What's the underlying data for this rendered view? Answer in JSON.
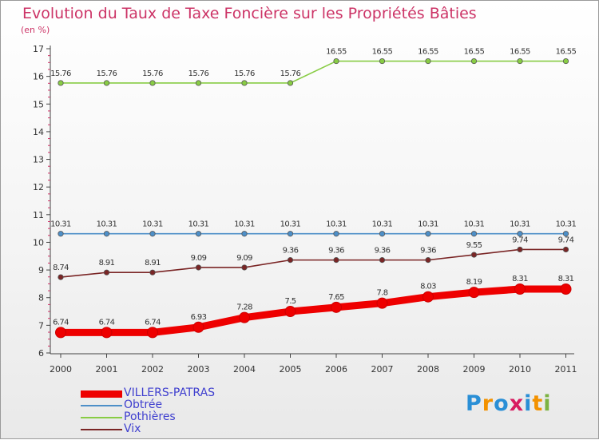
{
  "chart_data": {
    "type": "line",
    "title": "Evolution du Taux de Taxe Foncière sur les Propriétés Bâties",
    "unit_label": "(en %)",
    "xlabel": "",
    "ylabel": "",
    "x": [
      "2000",
      "2001",
      "2002",
      "2003",
      "2004",
      "2005",
      "2006",
      "2007",
      "2008",
      "2009",
      "2010",
      "2011"
    ],
    "ylim": [
      6,
      17
    ],
    "yticks": [
      "6",
      "7",
      "8",
      "9",
      "10",
      "11",
      "12",
      "13",
      "14",
      "15",
      "16",
      "17"
    ],
    "grid": false,
    "legend_position": "bottom-left",
    "series": [
      {
        "name": "VILLERS-PATRAS",
        "color": "#ee0000",
        "values": [
          6.74,
          6.74,
          6.74,
          6.93,
          7.28,
          7.5,
          7.65,
          7.8,
          8.03,
          8.19,
          8.31,
          8.31
        ],
        "labels": [
          "6.74",
          "6.74",
          "6.74",
          "6.93",
          "7.28",
          "7.5",
          "7.65",
          "7.8",
          "8.03",
          "8.19",
          "8.31",
          "8.31"
        ]
      },
      {
        "name": "Obtrée",
        "color": "#4d8fc8",
        "values": [
          10.31,
          10.31,
          10.31,
          10.31,
          10.31,
          10.31,
          10.31,
          10.31,
          10.31,
          10.31,
          10.31,
          10.31
        ],
        "labels": [
          "10.31",
          "10.31",
          "10.31",
          "10.31",
          "10.31",
          "10.31",
          "10.31",
          "10.31",
          "10.31",
          "10.31",
          "10.31",
          "10.31"
        ]
      },
      {
        "name": "Pothières",
        "color": "#88cc44",
        "values": [
          15.76,
          15.76,
          15.76,
          15.76,
          15.76,
          15.76,
          16.55,
          16.55,
          16.55,
          16.55,
          16.55,
          16.55
        ],
        "labels": [
          "15.76",
          "15.76",
          "15.76",
          "15.76",
          "15.76",
          "15.76",
          "16.55",
          "16.55",
          "16.55",
          "16.55",
          "16.55",
          "16.55"
        ]
      },
      {
        "name": "Vix",
        "color": "#7a2525",
        "values": [
          8.74,
          8.91,
          8.91,
          9.09,
          9.09,
          9.36,
          9.36,
          9.36,
          9.36,
          9.55,
          9.74,
          9.74
        ],
        "labels": [
          "8.74",
          "8.91",
          "8.91",
          "9.09",
          "9.09",
          "9.36",
          "9.36",
          "9.36",
          "9.36",
          "9.55",
          "9.74",
          "9.74"
        ]
      }
    ]
  },
  "logo": {
    "text": "Proxiti",
    "colors": [
      "#2a8fd6",
      "#f39200",
      "#2a8fd6",
      "#d81b60",
      "#2a8fd6",
      "#f39200",
      "#7cb342"
    ]
  }
}
